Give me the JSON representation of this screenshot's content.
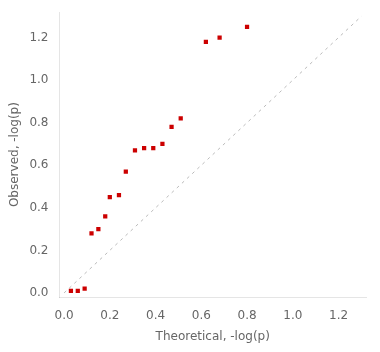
{
  "chart_data": {
    "type": "scatter",
    "xlabel": "Theoretical, -log(p)",
    "ylabel": "Observed, -log(p)",
    "xlim": [
      -0.02,
      1.32
    ],
    "ylim": [
      -0.02,
      1.32
    ],
    "xticks": [
      {
        "value": 0,
        "label": "0.0"
      },
      0.2,
      0.4,
      0.6,
      0.8,
      {
        "value": 1,
        "label": "1.0"
      },
      1.2
    ],
    "yticks": [
      {
        "value": 0,
        "label": "0.0"
      },
      0.2,
      0.4,
      0.6,
      0.8,
      {
        "value": 1,
        "label": "1.0"
      },
      1.2
    ],
    "grid": false,
    "series": [
      {
        "type": "line",
        "color": "#bbbbbb",
        "line_style": "dashed",
        "x": [
          0,
          1.3
        ],
        "y": [
          0,
          1.3
        ]
      },
      {
        "type": "scatter",
        "color": "#cc0000",
        "marker": "square",
        "x": [
          0.03,
          0.06,
          0.09,
          0.12,
          0.15,
          0.18,
          0.2,
          0.24,
          0.27,
          0.31,
          0.35,
          0.39,
          0.43,
          0.47,
          0.51,
          0.62,
          0.68,
          0.8
        ],
        "y": [
          0.01,
          0.01,
          0.02,
          0.28,
          0.3,
          0.36,
          0.45,
          0.46,
          0.57,
          0.67,
          0.68,
          0.68,
          0.7,
          0.78,
          0.82,
          1.18,
          1.2,
          1.25
        ]
      }
    ]
  }
}
